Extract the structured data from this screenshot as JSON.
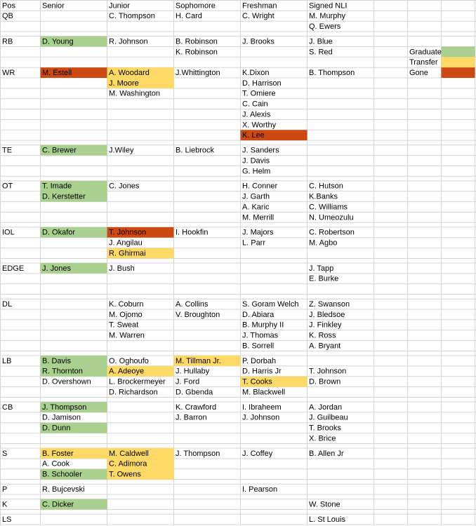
{
  "table": {
    "rows": [
      [
        "Pos",
        "Senior",
        "Junior",
        "Sophomore",
        "Freshman",
        "Signed NLI"
      ],
      [
        "QB",
        null,
        "C. Thompson",
        "H. Card",
        "C. Wright",
        "M. Murphy"
      ],
      [
        null,
        null,
        null,
        null,
        null,
        "Q. Ewers"
      ],
      [
        null
      ],
      [
        "RB",
        {
          "text": "D. Young",
          "fill": "#a9d08e"
        },
        "R. Johnson",
        "B. Robinson",
        "J. Brooks",
        "J. Blue"
      ],
      [
        null,
        null,
        null,
        "K. Robinson",
        null,
        "S. Red",
        null,
        "Graduate",
        {
          "fill": "#a9d08e"
        }
      ],
      [
        null,
        null,
        null,
        null,
        null,
        null,
        null,
        "Transfer",
        {
          "fill": "#ffd966"
        }
      ],
      [
        "WR",
        {
          "text": "M. Estell",
          "fill": "#cc4a12"
        },
        {
          "text": "A. Woodard",
          "fill": "#ffd966"
        },
        "J.Whittington",
        "K.Dixon",
        "B. Thompson",
        null,
        "Gone",
        {
          "fill": "#cc4a12"
        }
      ],
      [
        null,
        null,
        {
          "text": "J. Moore",
          "fill": "#ffd966"
        },
        null,
        "D. Harrison"
      ],
      [
        null,
        null,
        "M. Washington",
        null,
        "T. Omiere"
      ],
      [
        null,
        null,
        null,
        null,
        "C. Cain"
      ],
      [
        null,
        null,
        null,
        null,
        "J. Alexis"
      ],
      [
        null,
        null,
        null,
        null,
        "X. Worthy"
      ],
      [
        null,
        null,
        null,
        null,
        {
          "text": "K. Lee",
          "fill": "#cc4a12"
        }
      ],
      [
        null
      ],
      [
        "TE",
        {
          "text": "C. Brewer",
          "fill": "#a9d08e"
        },
        "J.Wiley",
        "B. Liebrock",
        "J. Sanders"
      ],
      [
        null,
        null,
        null,
        null,
        "J. Davis"
      ],
      [
        null,
        null,
        null,
        null,
        "G. Helm"
      ],
      [
        null
      ],
      [
        "OT",
        {
          "text": "T. Imade",
          "fill": "#a9d08e"
        },
        "C. Jones",
        null,
        "H. Conner",
        "C. Hutson"
      ],
      [
        null,
        {
          "text": "D. Kerstetter",
          "fill": "#a9d08e"
        },
        null,
        null,
        "J. Garth",
        "K.Banks"
      ],
      [
        null,
        null,
        null,
        null,
        "A. Karic",
        "C. Williams"
      ],
      [
        null,
        null,
        null,
        null,
        "M. Merrill",
        "N. Umeozulu"
      ],
      [
        null
      ],
      [
        "IOL",
        {
          "text": "D. Okafor",
          "fill": "#a9d08e"
        },
        {
          "text": "T. Johnson",
          "fill": "#cc4a12"
        },
        "I. Hookfin",
        "J. Majors",
        "C. Robertson"
      ],
      [
        null,
        null,
        "J. Angilau",
        null,
        "L. Parr",
        "M. Agbo"
      ],
      [
        null,
        null,
        {
          "text": "R. Ghirmai",
          "fill": "#ffd966"
        }
      ],
      [
        null
      ],
      [
        "EDGE",
        {
          "text": "J. Jones",
          "fill": "#a9d08e"
        },
        "J. Bush",
        null,
        null,
        "J. Tapp"
      ],
      [
        null,
        null,
        null,
        null,
        null,
        "E. Burke"
      ],
      [
        null
      ],
      [
        null
      ],
      [
        "DL",
        null,
        "K. Coburn",
        "A. Collins",
        "S. Goram Welch",
        "Z. Swanson"
      ],
      [
        null,
        null,
        "M. Ojomo",
        "V. Broughton",
        "D. Abiara",
        "J. Bledsoe"
      ],
      [
        null,
        null,
        "T. Sweat",
        null,
        "B. Murphy II",
        "J. Finkley"
      ],
      [
        null,
        null,
        "M. Warren",
        null,
        "J. Thomas",
        "K. Ross"
      ],
      [
        null,
        null,
        null,
        null,
        "B. Sorrell",
        "A. Bryant"
      ],
      [
        null
      ],
      [
        "LB",
        {
          "text": "B. Davis",
          "fill": "#a9d08e"
        },
        "O. Oghoufo",
        {
          "text": "M. Tillman Jr.",
          "fill": "#ffd966"
        },
        "P. Dorbah"
      ],
      [
        null,
        {
          "text": "R. Thornton",
          "fill": "#a9d08e"
        },
        {
          "text": "A. Adeoye",
          "fill": "#ffd966"
        },
        "J. Hullaby",
        "D. Harris Jr",
        "T. Johnson"
      ],
      [
        null,
        "D. Overshown",
        "L. Brockermeyer",
        "J. Ford",
        {
          "text": "T. Cooks",
          "fill": "#ffd966"
        },
        "D. Brown"
      ],
      [
        null,
        null,
        "D. Richardson",
        "D. Gbenda",
        "M. Blackwell"
      ],
      [
        null
      ],
      [
        "CB",
        {
          "text": "J. Thompson",
          "fill": "#a9d08e"
        },
        null,
        "K. Crawford",
        "I. Ibraheem",
        "A. Jordan"
      ],
      [
        null,
        "D. Jamison",
        null,
        "J. Barron",
        "J. Johnson",
        "J. Guilbeau"
      ],
      [
        null,
        {
          "text": "D. Dunn",
          "fill": "#a9d08e"
        },
        null,
        null,
        null,
        "T. Brooks"
      ],
      [
        null,
        null,
        null,
        null,
        null,
        "X. Brice"
      ],
      [
        null
      ],
      [
        "S",
        {
          "text": "B. Foster",
          "fill": "#ffd966"
        },
        {
          "text": "M. Caldwell",
          "fill": "#ffd966"
        },
        "J. Thompson",
        "J. Coffey",
        "B. Allen Jr"
      ],
      [
        null,
        "A. Cook",
        {
          "text": "C. Adimora",
          "fill": "#ffd966"
        }
      ],
      [
        null,
        {
          "text": "B. Schooler",
          "fill": "#a9d08e"
        },
        {
          "text": "T. Owens",
          "fill": "#ffd966"
        }
      ],
      [
        null
      ],
      [
        "P",
        "R. Bujcevski",
        null,
        null,
        "I. Pearson"
      ],
      [
        null
      ],
      [
        "K",
        {
          "text": "C. Dicker",
          "fill": "#a9d08e"
        },
        null,
        null,
        null,
        "W. Stone"
      ],
      [
        null
      ],
      [
        "LS",
        null,
        null,
        null,
        null,
        "L. St Louis"
      ]
    ]
  }
}
